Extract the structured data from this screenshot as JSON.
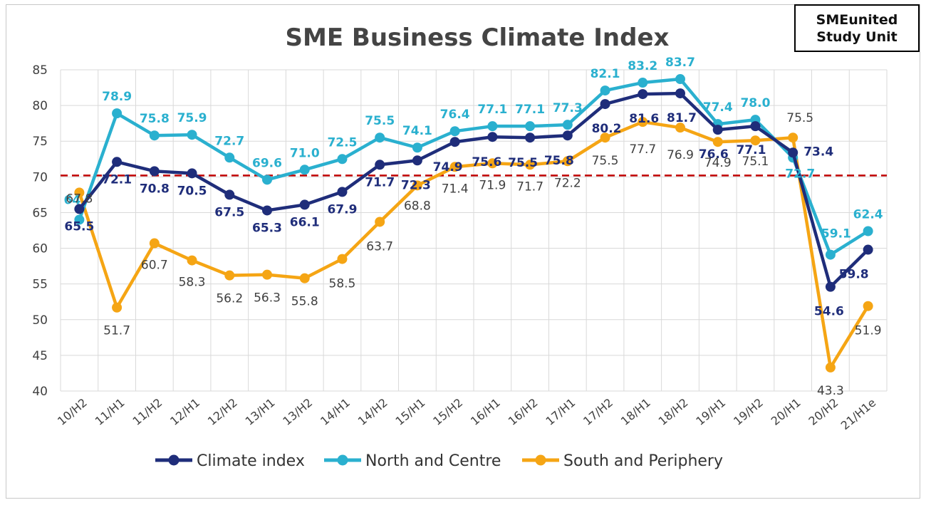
{
  "badge": {
    "line1": "SMEunited",
    "line2": "Study Unit"
  },
  "chart_data": {
    "type": "line",
    "title": "SME Business Climate Index",
    "xlabel": "",
    "ylabel": "",
    "ylim": [
      40,
      85
    ],
    "yticks": [
      40,
      45,
      50,
      55,
      60,
      65,
      70,
      75,
      80,
      85
    ],
    "grid": true,
    "legend_position": "bottom",
    "reference_line": {
      "value": 70.2,
      "style": "dashed",
      "color": "#c00000"
    },
    "categories": [
      "10/H2",
      "11/H1",
      "11/H2",
      "12/H1",
      "12/H2",
      "13/H1",
      "13/H2",
      "14/H1",
      "14/H2",
      "15/H1",
      "15/H2",
      "16/H1",
      "16/H2",
      "17/H1",
      "17/H2",
      "18/H1",
      "18/H2",
      "19/H1",
      "19/H2",
      "20/H1",
      "20/H2",
      "21/H1e"
    ],
    "series": [
      {
        "name": "Climate index",
        "color": "#1f2d7a",
        "values": [
          65.5,
          72.1,
          70.8,
          70.5,
          67.5,
          65.3,
          66.1,
          67.9,
          71.7,
          72.3,
          74.9,
          75.6,
          75.5,
          75.8,
          80.2,
          81.6,
          81.7,
          76.6,
          77.1,
          73.4,
          54.6,
          59.8
        ],
        "labels": [
          "65.5",
          "72.1",
          "70.8",
          "70.5",
          "67.5",
          "65.3",
          "66.1",
          "67.9",
          "71.7",
          "72.3",
          "74.9",
          "75.6",
          "75.5",
          "75.8",
          "80.2",
          "81.6",
          "81.7",
          "76.6",
          "77.1",
          "73.4",
          "54.6",
          "59.8"
        ]
      },
      {
        "name": "North and Centre",
        "color": "#2ab0cf",
        "values": [
          64.0,
          78.9,
          75.8,
          75.9,
          72.7,
          69.6,
          71.0,
          72.5,
          75.5,
          74.1,
          76.4,
          77.1,
          77.1,
          77.3,
          82.1,
          83.2,
          83.7,
          77.4,
          78.0,
          72.7,
          59.1,
          62.4
        ],
        "labels": [
          "64",
          "78.9",
          "75.8",
          "75.9",
          "72.7",
          "69.6",
          "71.0",
          "72.5",
          "75.5",
          "74.1",
          "76.4",
          "77.1",
          "77.1",
          "77.3",
          "82.1",
          "83.2",
          "83.7",
          "77.4",
          "78.0",
          "72.7",
          "59.1",
          "62.4"
        ]
      },
      {
        "name": "South and Periphery",
        "color": "#f5a514",
        "values": [
          67.8,
          51.7,
          60.7,
          58.3,
          56.2,
          56.3,
          55.8,
          58.5,
          63.7,
          68.8,
          71.4,
          71.9,
          71.7,
          72.2,
          75.5,
          77.7,
          76.9,
          74.9,
          75.1,
          75.5,
          43.3,
          51.9
        ],
        "labels": [
          "67.8",
          "51.7",
          "60.7",
          "58.3",
          "56.2",
          "56.3",
          "55.8",
          "58.5",
          "63.7",
          "68.8",
          "71.4",
          "71.9",
          "71.7",
          "72.2",
          "75.5",
          "77.7",
          "76.9",
          "74.9",
          "75.1",
          "75.5",
          "43.3",
          "51.9"
        ]
      }
    ]
  }
}
